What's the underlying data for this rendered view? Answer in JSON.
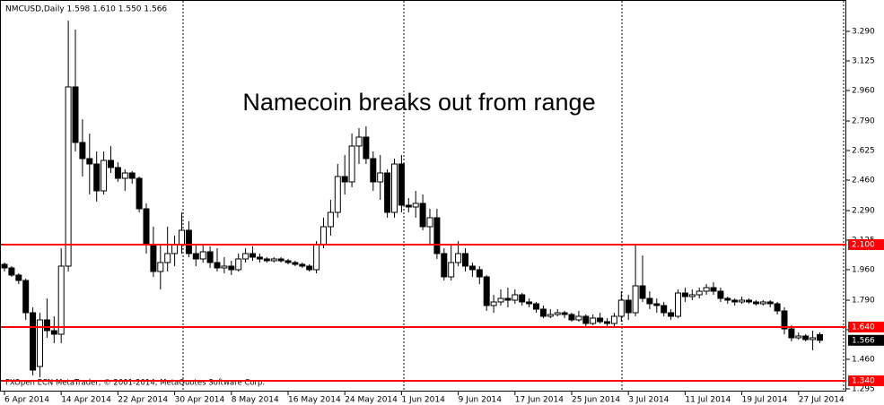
{
  "chart_data": {
    "type": "candlestick",
    "title": "NMCUSD,Daily  1.598 1.610 1.550 1.566",
    "annotation": "Namecoin breaks out from range",
    "footer": "FXOpen ECN MetaTrader, © 2001-2014, MetaQuotes Software Corp.",
    "categories": [
      "6 Apr 2014",
      null,
      null,
      null,
      null,
      null,
      null,
      null,
      "14 Apr 2014",
      null,
      null,
      null,
      null,
      null,
      null,
      null,
      "22 Apr 2014",
      null,
      null,
      null,
      null,
      null,
      null,
      null,
      "30 Apr 2014",
      null,
      null,
      null,
      null,
      null,
      null,
      null,
      "8 May 2014",
      null,
      null,
      null,
      null,
      null,
      null,
      null,
      "16 May 2014",
      null,
      null,
      null,
      null,
      null,
      null,
      null,
      "24 May 2014",
      null,
      null,
      null,
      null,
      null,
      null,
      null,
      "1 Jun 2014",
      null,
      null,
      null,
      null,
      null,
      null,
      null,
      "9 Jun 2014",
      null,
      null,
      null,
      null,
      null,
      null,
      null,
      "17 Jun 2014",
      null,
      null,
      null,
      null,
      null,
      null,
      null,
      "25 Jun 2014",
      null,
      null,
      null,
      null,
      null,
      null,
      null,
      "3 Jul 2014",
      null,
      null,
      null,
      null,
      null,
      null,
      null,
      "11 Jul 2014",
      null,
      null,
      null,
      null,
      null,
      null,
      null,
      "19 Jul 2014",
      null,
      null,
      null,
      null,
      null,
      null,
      null,
      "27 Jul 2014",
      null,
      null,
      null
    ],
    "open": [
      1.99,
      1.97,
      1.93,
      1.9,
      1.72,
      1.42,
      1.68,
      1.62,
      1.6,
      1.98,
      2.98,
      2.67,
      2.58,
      2.55,
      2.4,
      2.57,
      2.53,
      2.47,
      2.5,
      2.47,
      2.3,
      2.1,
      1.95,
      2.0,
      2.05,
      2.1,
      2.18,
      2.05,
      2.02,
      2.06,
      2.0,
      1.97,
      1.98,
      1.96,
      2.02,
      2.05,
      2.03,
      2.02,
      2.01,
      2.02,
      2.01,
      2.0,
      1.99,
      1.98,
      1.96,
      2.1,
      2.2,
      2.28,
      2.48,
      2.45,
      2.65,
      2.7,
      2.58,
      2.45,
      2.5,
      2.28,
      2.55,
      2.32,
      2.31,
      2.33,
      2.2,
      2.25,
      2.05,
      1.92,
      2.0,
      2.05,
      1.98,
      1.96,
      1.92,
      1.76,
      1.78,
      1.8,
      1.79,
      1.82,
      1.78,
      1.77,
      1.74,
      1.7,
      1.71,
      1.72,
      1.71,
      1.68,
      1.7,
      1.66,
      1.69,
      1.67,
      1.66,
      1.7,
      1.79,
      1.72,
      1.87,
      1.8,
      1.77,
      1.76,
      1.72,
      1.7,
      1.83,
      1.81,
      1.82,
      1.84,
      1.86,
      1.84,
      1.8,
      1.79,
      1.78,
      1.79,
      1.78,
      1.77,
      1.78,
      1.77,
      1.73,
      1.63,
      1.58,
      1.59,
      1.57,
      1.598
    ],
    "high": [
      2.0,
      1.98,
      1.94,
      1.91,
      1.75,
      1.72,
      1.8,
      1.7,
      2.08,
      3.35,
      3.3,
      2.8,
      2.72,
      2.62,
      2.62,
      2.65,
      2.56,
      2.52,
      2.51,
      2.48,
      2.33,
      2.2,
      2.1,
      2.2,
      2.15,
      2.28,
      2.23,
      2.1,
      2.1,
      2.09,
      2.08,
      2.03,
      2.01,
      2.05,
      2.08,
      2.09,
      2.05,
      2.03,
      2.03,
      2.03,
      2.02,
      2.01,
      2.0,
      1.99,
      2.12,
      2.25,
      2.35,
      2.55,
      2.6,
      2.72,
      2.75,
      2.76,
      2.62,
      2.6,
      2.52,
      2.58,
      2.6,
      2.36,
      2.4,
      2.38,
      2.3,
      2.3,
      2.08,
      2.1,
      2.12,
      2.08,
      2.0,
      1.98,
      1.93,
      1.82,
      1.85,
      1.86,
      1.85,
      1.83,
      1.8,
      1.78,
      1.76,
      1.74,
      1.74,
      1.73,
      1.72,
      1.73,
      1.71,
      1.71,
      1.72,
      1.69,
      1.72,
      1.84,
      1.82,
      2.1,
      2.04,
      1.84,
      1.8,
      1.78,
      1.74,
      1.85,
      1.86,
      1.85,
      1.86,
      1.88,
      1.89,
      1.86,
      1.81,
      1.8,
      1.81,
      1.8,
      1.79,
      1.79,
      1.79,
      1.78,
      1.75,
      1.65,
      1.61,
      1.6,
      1.62,
      1.61
    ],
    "low": [
      1.95,
      1.92,
      1.88,
      1.68,
      1.37,
      1.36,
      1.58,
      1.55,
      1.55,
      1.95,
      2.62,
      2.48,
      2.38,
      2.34,
      2.38,
      2.5,
      2.45,
      2.4,
      2.44,
      2.28,
      2.05,
      1.92,
      1.85,
      1.95,
      1.98,
      2.05,
      2.03,
      1.98,
      2.0,
      1.97,
      1.95,
      1.94,
      1.93,
      1.95,
      2.0,
      2.01,
      2.0,
      2.0,
      2.0,
      2.0,
      1.99,
      1.98,
      1.97,
      1.95,
      1.94,
      2.08,
      2.15,
      2.25,
      2.38,
      2.42,
      2.55,
      2.55,
      2.4,
      2.35,
      2.25,
      2.25,
      2.28,
      2.28,
      2.25,
      2.18,
      2.1,
      2.02,
      1.9,
      1.9,
      1.98,
      1.95,
      1.92,
      1.88,
      1.73,
      1.72,
      1.76,
      1.75,
      1.77,
      1.76,
      1.75,
      1.72,
      1.69,
      1.69,
      1.7,
      1.69,
      1.67,
      1.67,
      1.64,
      1.65,
      1.66,
      1.64,
      1.64,
      1.67,
      1.68,
      1.7,
      1.78,
      1.74,
      1.72,
      1.7,
      1.68,
      1.69,
      1.78,
      1.79,
      1.8,
      1.82,
      1.82,
      1.78,
      1.77,
      1.76,
      1.77,
      1.77,
      1.76,
      1.76,
      1.75,
      1.71,
      1.6,
      1.56,
      1.57,
      1.56,
      1.51,
      1.55
    ],
    "close": [
      1.97,
      1.93,
      1.9,
      1.72,
      1.4,
      1.68,
      1.62,
      1.6,
      1.98,
      2.98,
      2.67,
      2.58,
      2.55,
      2.4,
      2.57,
      2.53,
      2.47,
      2.5,
      2.47,
      2.3,
      2.1,
      1.95,
      2.0,
      2.05,
      2.1,
      2.18,
      2.05,
      2.02,
      2.06,
      2.0,
      1.97,
      1.98,
      1.96,
      2.02,
      2.05,
      2.03,
      2.02,
      2.01,
      2.02,
      2.01,
      2.0,
      1.99,
      1.98,
      1.96,
      2.1,
      2.2,
      2.28,
      2.48,
      2.45,
      2.65,
      2.7,
      2.58,
      2.45,
      2.5,
      2.28,
      2.55,
      2.32,
      2.31,
      2.33,
      2.2,
      2.25,
      2.05,
      1.92,
      2.0,
      2.05,
      1.98,
      1.96,
      1.92,
      1.76,
      1.78,
      1.8,
      1.79,
      1.82,
      1.78,
      1.77,
      1.74,
      1.7,
      1.71,
      1.72,
      1.71,
      1.68,
      1.7,
      1.66,
      1.69,
      1.67,
      1.66,
      1.7,
      1.79,
      1.72,
      1.87,
      1.8,
      1.77,
      1.76,
      1.72,
      1.7,
      1.83,
      1.81,
      1.82,
      1.84,
      1.86,
      1.84,
      1.8,
      1.79,
      1.78,
      1.79,
      1.78,
      1.77,
      1.78,
      1.77,
      1.73,
      1.63,
      1.58,
      1.59,
      1.57,
      1.58,
      1.566
    ],
    "ylim": [
      1.28,
      3.465
    ],
    "yticks": [
      {
        "value": 3.29,
        "label": "3.290"
      },
      {
        "value": 3.125,
        "label": "3.125"
      },
      {
        "value": 2.96,
        "label": "2.960"
      },
      {
        "value": 2.79,
        "label": "2.790"
      },
      {
        "value": 2.625,
        "label": "2.625"
      },
      {
        "value": 2.46,
        "label": "2.460"
      },
      {
        "value": 2.29,
        "label": "2.290"
      },
      {
        "value": 2.125,
        "label": "2.125"
      },
      {
        "value": 1.96,
        "label": "1.960"
      },
      {
        "value": 1.79,
        "label": "1.790"
      },
      {
        "value": 1.625,
        "label": "1.625"
      },
      {
        "value": 1.46,
        "label": "1.460"
      },
      {
        "value": 1.295,
        "label": "1.295"
      }
    ],
    "levels": [
      {
        "value": 2.1,
        "label": "2.100"
      },
      {
        "value": 1.64,
        "label": "1.640"
      },
      {
        "value": 1.34,
        "label": "1.340"
      }
    ],
    "level_color": "#ff0000",
    "last_price": {
      "value": 1.566,
      "label": "1.566"
    },
    "bull_color": "#ffffff",
    "bear_color": "#000000"
  }
}
